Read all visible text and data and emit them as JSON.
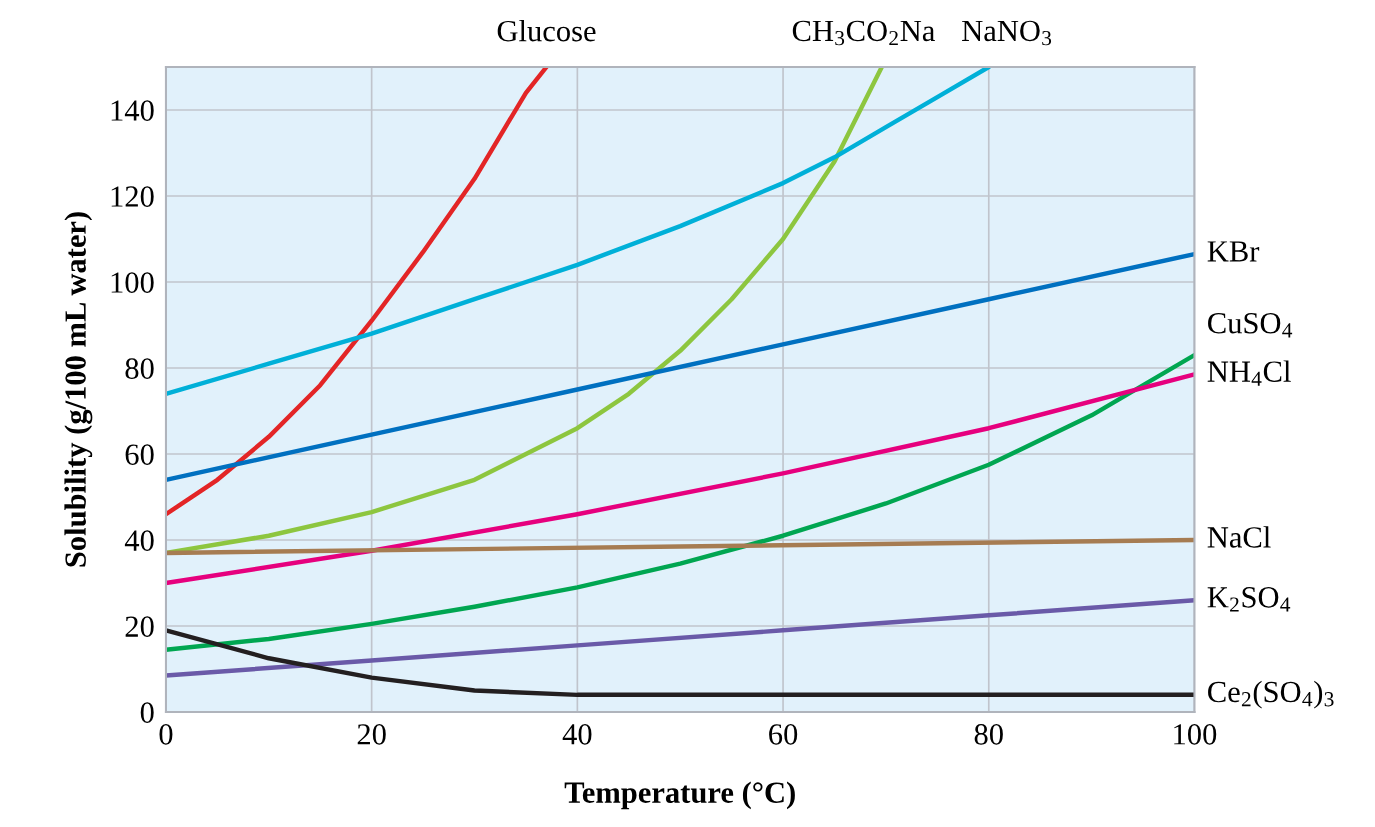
{
  "chart_data": {
    "type": "line",
    "xlabel": "Temperature (°C)",
    "ylabel": "Solubility (g/100 mL water)",
    "xlim": [
      0,
      100
    ],
    "xticks": [
      0,
      20,
      40,
      60,
      80,
      100
    ],
    "ylim": [
      0,
      150
    ],
    "yticks": [
      0,
      20,
      40,
      60,
      80,
      100,
      120,
      140
    ],
    "grid": true,
    "series": [
      {
        "name": "Glucose",
        "color": "#e32526",
        "x": [
          0,
          5,
          10,
          15,
          20,
          25,
          30,
          35,
          37
        ],
        "values": [
          46,
          54,
          64,
          76,
          91,
          107,
          124,
          144,
          150
        ]
      },
      {
        "name": "CH$_{3}$CO$_{2}$Na",
        "color": "#8dc63f",
        "x": [
          0,
          10,
          20,
          30,
          40,
          45,
          50,
          55,
          60,
          65,
          69.6
        ],
        "values": [
          37,
          41,
          46.5,
          54,
          66,
          74,
          84,
          96,
          110,
          128,
          150
        ]
      },
      {
        "name": "NaNO$_{3}$",
        "color": "#00b0d8",
        "x": [
          0,
          10,
          20,
          30,
          40,
          50,
          60,
          65,
          70,
          75,
          80
        ],
        "values": [
          74,
          81,
          88,
          96,
          104,
          113,
          123,
          129,
          136,
          143,
          150
        ]
      },
      {
        "name": "KBr",
        "color": "#0070c0",
        "x": [
          0,
          20,
          40,
          60,
          80,
          100
        ],
        "values": [
          54,
          64.5,
          75,
          85.5,
          96,
          106.5
        ]
      },
      {
        "name": "CuSO$_{4}$",
        "color": "#00a651",
        "x": [
          0,
          10,
          20,
          30,
          40,
          50,
          60,
          70,
          80,
          90,
          100
        ],
        "values": [
          14.5,
          17,
          20.5,
          24.5,
          29,
          34.5,
          41,
          48.5,
          57.5,
          69,
          83
        ]
      },
      {
        "name": "NH$_{4}$Cl",
        "color": "#e6007e",
        "x": [
          0,
          20,
          40,
          60,
          80,
          100
        ],
        "values": [
          30,
          37.5,
          46,
          55.5,
          66,
          78.5
        ]
      },
      {
        "name": "NaCl",
        "color": "#a67c52",
        "x": [
          0,
          50,
          100
        ],
        "values": [
          37,
          38.5,
          40
        ]
      },
      {
        "name": "K$_{2}$SO$_{4}$",
        "color": "#6a5aa8",
        "x": [
          0,
          20,
          40,
          60,
          80,
          100
        ],
        "values": [
          8.5,
          12,
          15.5,
          19,
          22.5,
          26
        ]
      },
      {
        "name": "Ce$_{2}$(SO$_{4}$)$_{3}$",
        "color": "#231f20",
        "x": [
          0,
          10,
          20,
          30,
          40,
          100
        ],
        "values": [
          19,
          12.5,
          8,
          5,
          4,
          4
        ]
      }
    ]
  }
}
